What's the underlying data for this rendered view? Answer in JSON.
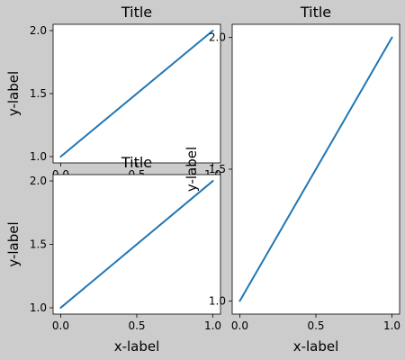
{
  "chart_data": [
    {
      "type": "line",
      "title": "Title",
      "xlabel": "",
      "ylabel": "y-label",
      "xlim": [
        -0.05,
        1.05
      ],
      "ylim": [
        0.95,
        2.05
      ],
      "xticks": [
        0.0,
        0.5,
        1.0
      ],
      "xtick_labels": [
        "0.0",
        "0.5",
        "1.0"
      ],
      "yticks": [
        1.0,
        1.5,
        2.0
      ],
      "ytick_labels": [
        "1.0",
        "1.5",
        "2.0"
      ],
      "series": [
        {
          "x": [
            0,
            1
          ],
          "y": [
            1,
            2
          ],
          "color": "#1f77b4"
        }
      ]
    },
    {
      "type": "line",
      "title": "Title",
      "xlabel": "x-label",
      "ylabel": "y-label",
      "xlim": [
        -0.05,
        1.05
      ],
      "ylim": [
        0.95,
        2.05
      ],
      "xticks": [
        0.0,
        0.5,
        1.0
      ],
      "xtick_labels": [
        "0.0",
        "0.5",
        "1.0"
      ],
      "yticks": [
        1.0,
        1.5,
        2.0
      ],
      "ytick_labels": [
        "1.0",
        "1.5",
        "2.0"
      ],
      "series": [
        {
          "x": [
            0,
            1
          ],
          "y": [
            1,
            2
          ],
          "color": "#1f77b4"
        }
      ]
    },
    {
      "type": "line",
      "title": "Title",
      "xlabel": "x-label",
      "ylabel": "y-label",
      "xlim": [
        -0.05,
        1.05
      ],
      "ylim": [
        0.95,
        2.05
      ],
      "xticks": [
        0.0,
        0.5,
        1.0
      ],
      "xtick_labels": [
        "0.0",
        "0.5",
        "1.0"
      ],
      "yticks": [
        1.0,
        1.5,
        2.0
      ],
      "ytick_labels": [
        "1.0",
        "1.5",
        "2.0"
      ],
      "series": [
        {
          "x": [
            0,
            1
          ],
          "y": [
            1,
            2
          ],
          "color": "#1f77b4"
        }
      ]
    }
  ]
}
